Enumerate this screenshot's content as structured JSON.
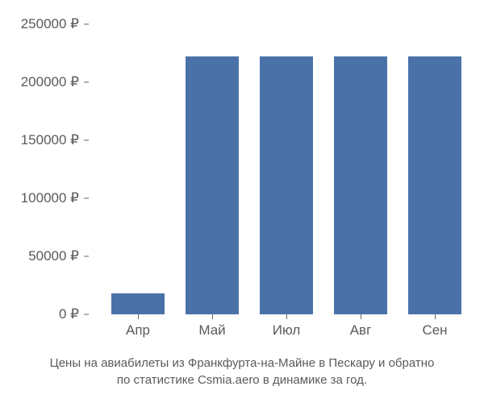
{
  "chart": {
    "type": "bar",
    "categories": [
      "Апр",
      "Май",
      "Июл",
      "Авг",
      "Сен"
    ],
    "values": [
      18000,
      222000,
      222000,
      222000,
      222000
    ],
    "bar_color": "#4a72a8",
    "y_ticks": [
      0,
      50000,
      100000,
      150000,
      200000,
      250000
    ],
    "y_tick_labels": [
      "0 ₽",
      "50000 ₽",
      "100000 ₽",
      "150000 ₽",
      "200000 ₽",
      "250000 ₽"
    ],
    "ylim": [
      0,
      250000
    ],
    "background_color": "#ffffff",
    "axis_label_color": "#5a5a5a",
    "axis_label_fontsize": 17,
    "tick_mark_color": "#666666",
    "bar_width_ratio": 0.72
  },
  "caption": {
    "line1": "Цены на авиабилеты из Франкфурта-на-Майне в Пескару и обратно",
    "line2": "по статистике Csmia.aero в динамике за год.",
    "color": "#5a5a5a",
    "fontsize": 15
  }
}
